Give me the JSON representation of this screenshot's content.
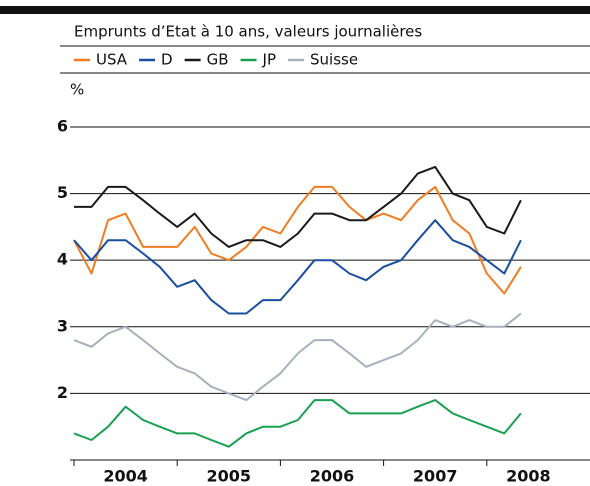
{
  "chart_data": {
    "type": "line",
    "subtitle": "Emprunts d’Etat à 10 ans, valeurs journalières",
    "y_unit": "%",
    "x": [
      2004,
      2004.17,
      2004.33,
      2004.5,
      2004.67,
      2004.83,
      2005,
      2005.17,
      2005.33,
      2005.5,
      2005.67,
      2005.83,
      2006,
      2006.17,
      2006.33,
      2006.5,
      2006.67,
      2006.83,
      2007,
      2007.17,
      2007.33,
      2007.5,
      2007.67,
      2007.83,
      2008,
      2008.17,
      2008.33
    ],
    "xlim": [
      2004,
      2009
    ],
    "xticks": [
      2004,
      2005,
      2006,
      2007,
      2008
    ],
    "categories": [
      "2004",
      "2005",
      "2006",
      "2007",
      "2008"
    ],
    "ylim": [
      1,
      6.6
    ],
    "yticks": [
      2,
      3,
      4,
      5,
      6
    ],
    "grid": true,
    "series": [
      {
        "name": "USA",
        "color": "#f07d22",
        "values": [
          4.3,
          3.8,
          4.6,
          4.7,
          4.2,
          4.2,
          4.2,
          4.5,
          4.1,
          4.0,
          4.2,
          4.5,
          4.4,
          4.8,
          5.1,
          5.1,
          4.8,
          4.6,
          4.7,
          4.6,
          4.9,
          5.1,
          4.6,
          4.4,
          3.8,
          3.5,
          3.9
        ]
      },
      {
        "name": "D",
        "color": "#1a4fa0",
        "values": [
          4.3,
          4.0,
          4.3,
          4.3,
          4.1,
          3.9,
          3.6,
          3.7,
          3.4,
          3.2,
          3.2,
          3.4,
          3.4,
          3.7,
          4.0,
          4.0,
          3.8,
          3.7,
          3.9,
          4.0,
          4.3,
          4.6,
          4.3,
          4.2,
          4.0,
          3.8,
          4.3
        ]
      },
      {
        "name": "GB",
        "color": "#1a1a1a",
        "values": [
          4.8,
          4.8,
          5.1,
          5.1,
          4.9,
          4.7,
          4.5,
          4.7,
          4.4,
          4.2,
          4.3,
          4.3,
          4.2,
          4.4,
          4.7,
          4.7,
          4.6,
          4.6,
          4.8,
          5.0,
          5.3,
          5.4,
          5.0,
          4.9,
          4.5,
          4.4,
          4.9
        ]
      },
      {
        "name": "JP",
        "color": "#1aa050",
        "values": [
          1.4,
          1.3,
          1.5,
          1.8,
          1.6,
          1.5,
          1.4,
          1.4,
          1.3,
          1.2,
          1.4,
          1.5,
          1.5,
          1.6,
          1.9,
          1.9,
          1.7,
          1.7,
          1.7,
          1.7,
          1.8,
          1.9,
          1.7,
          1.6,
          1.5,
          1.4,
          1.7
        ]
      },
      {
        "name": "Suisse",
        "color": "#a8b0bc",
        "values": [
          2.8,
          2.7,
          2.9,
          3.0,
          2.8,
          2.6,
          2.4,
          2.3,
          2.1,
          2.0,
          1.9,
          2.1,
          2.3,
          2.6,
          2.8,
          2.8,
          2.6,
          2.4,
          2.5,
          2.6,
          2.8,
          3.1,
          3.0,
          3.1,
          3.0,
          3.0,
          3.2
        ]
      }
    ]
  }
}
